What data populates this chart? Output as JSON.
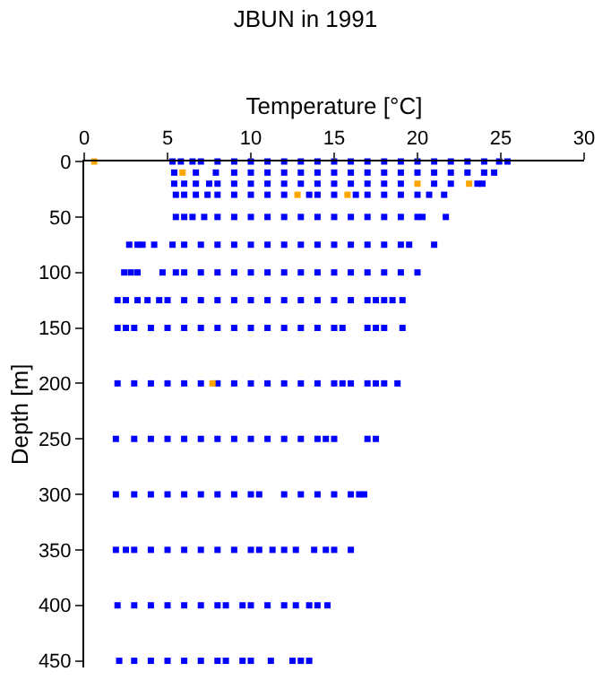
{
  "chart_data": {
    "type": "scatter",
    "title": "JBUN in 1991",
    "xlabel": "Temperature [°C]",
    "ylabel": "Depth [m]",
    "xlim": [
      0,
      30
    ],
    "xticks": [
      0,
      5,
      10,
      15,
      20,
      25,
      30
    ],
    "ylim": [
      456,
      0
    ],
    "yticks": [
      0,
      50,
      100,
      150,
      200,
      250,
      300,
      350,
      400,
      450
    ],
    "marker": "square",
    "series": [
      {
        "color": "#0000ff",
        "x": [
          5.3,
          5.8,
          6.5,
          7,
          8,
          9,
          10,
          11,
          12,
          13,
          14,
          15,
          16,
          17,
          18,
          19,
          20,
          21,
          22,
          23,
          24,
          24.9,
          25.4
        ],
        "values": [
          0,
          0,
          0,
          0,
          0,
          0,
          0,
          0,
          0,
          0,
          0,
          0,
          0,
          0,
          0,
          0,
          0,
          0,
          0,
          0,
          0,
          0,
          0
        ]
      },
      {
        "color": "#0000ff",
        "x": [
          5.4,
          6.7,
          7.9,
          9,
          10,
          11,
          12,
          13,
          14,
          15,
          16,
          17,
          18,
          19,
          20,
          21,
          22,
          23,
          24,
          24.6
        ],
        "values": [
          10,
          10,
          10,
          10,
          10,
          10,
          10,
          10,
          10,
          10,
          10,
          10,
          10,
          10,
          10,
          10,
          10,
          10,
          10,
          10
        ]
      },
      {
        "color": "#0000ff",
        "x": [
          5.4,
          6,
          6.7,
          7.5,
          8,
          9,
          10,
          11,
          12,
          13,
          14,
          15,
          16,
          17,
          18,
          19,
          21,
          22,
          23.6,
          23.9
        ],
        "values": [
          20,
          20,
          20,
          20,
          20,
          20,
          20,
          20,
          20,
          20,
          20,
          20,
          20,
          20,
          20,
          20,
          20,
          20,
          20,
          20
        ]
      },
      {
        "color": "#0000ff",
        "x": [
          5.5,
          6,
          6.7,
          7.4,
          8,
          9,
          10,
          11,
          12,
          13.5,
          14,
          15,
          16.3,
          17,
          18,
          19,
          20,
          20.7,
          21.6
        ],
        "values": [
          30,
          30,
          30,
          30,
          30,
          30,
          30,
          30,
          30,
          30,
          30,
          30,
          30,
          30,
          30,
          30,
          30,
          30,
          30
        ]
      },
      {
        "color": "#0000ff",
        "x": [
          5.5,
          6,
          6.5,
          7.2,
          8,
          9,
          10,
          11,
          12,
          13,
          14,
          15,
          16,
          17,
          18,
          19,
          20,
          20.3,
          21.7
        ],
        "values": [
          50,
          50,
          50,
          50,
          50,
          50,
          50,
          50,
          50,
          50,
          50,
          50,
          50,
          50,
          50,
          50,
          50,
          50,
          50
        ]
      },
      {
        "color": "#0000ff",
        "x": [
          2.7,
          3.2,
          3.5,
          4.2,
          5.3,
          6,
          7,
          8,
          9,
          10,
          11,
          12,
          13,
          14,
          15,
          16,
          17,
          18,
          19,
          19.5,
          21
        ],
        "values": [
          75,
          75,
          75,
          75,
          75,
          75,
          75,
          75,
          75,
          75,
          75,
          75,
          75,
          75,
          75,
          75,
          75,
          75,
          75,
          75,
          75
        ]
      },
      {
        "color": "#0000ff",
        "x": [
          2.4,
          2.8,
          3.2,
          4.7,
          5.5,
          6,
          7,
          8,
          9,
          10,
          11,
          12,
          13,
          14,
          15,
          16,
          17,
          18,
          19,
          20
        ],
        "values": [
          100,
          100,
          100,
          100,
          100,
          100,
          100,
          100,
          100,
          100,
          100,
          100,
          100,
          100,
          100,
          100,
          100,
          100,
          100,
          100
        ]
      },
      {
        "color": "#0000ff",
        "x": [
          2,
          2.5,
          3.2,
          3.8,
          4.5,
          5,
          6,
          7,
          8,
          9,
          10,
          11,
          12,
          13,
          14,
          15,
          16,
          17,
          17.5,
          18,
          18.5,
          19.1
        ],
        "values": [
          125,
          125,
          125,
          125,
          125,
          125,
          125,
          125,
          125,
          125,
          125,
          125,
          125,
          125,
          125,
          125,
          125,
          125,
          125,
          125,
          125,
          125
        ]
      },
      {
        "color": "#0000ff",
        "x": [
          2,
          2.5,
          3,
          4,
          5,
          6,
          7,
          8,
          9,
          10,
          11,
          12,
          13,
          14,
          15,
          15.5,
          17,
          17.5,
          18,
          19.1
        ],
        "values": [
          150,
          150,
          150,
          150,
          150,
          150,
          150,
          150,
          150,
          150,
          150,
          150,
          150,
          150,
          150,
          150,
          150,
          150,
          150,
          150
        ]
      },
      {
        "color": "#0000ff",
        "x": [
          2,
          3,
          4,
          5,
          6,
          7,
          8,
          9,
          10,
          11,
          12,
          13,
          14,
          15,
          15.5,
          16,
          17,
          17.5,
          18,
          18.8
        ],
        "values": [
          200,
          200,
          200,
          200,
          200,
          200,
          200,
          200,
          200,
          200,
          200,
          200,
          200,
          200,
          200,
          200,
          200,
          200,
          200,
          200
        ]
      },
      {
        "color": "#0000ff",
        "x": [
          1.9,
          3,
          4,
          5,
          6,
          7,
          8,
          9,
          10,
          11,
          12,
          13,
          14,
          14.5,
          15,
          17,
          17.5
        ],
        "values": [
          250,
          250,
          250,
          250,
          250,
          250,
          250,
          250,
          250,
          250,
          250,
          250,
          250,
          250,
          250,
          250,
          250
        ]
      },
      {
        "color": "#0000ff",
        "x": [
          1.9,
          3,
          4,
          5,
          6,
          7,
          8,
          9,
          10,
          10.5,
          12,
          13,
          14,
          15,
          16,
          16.5,
          16.8
        ],
        "values": [
          300,
          300,
          300,
          300,
          300,
          300,
          300,
          300,
          300,
          300,
          300,
          300,
          300,
          300,
          300,
          300,
          300
        ]
      },
      {
        "color": "#0000ff",
        "x": [
          1.9,
          2.5,
          3,
          4,
          5,
          6,
          7,
          8,
          9,
          10,
          10.5,
          11.3,
          12,
          12.7,
          13.8,
          14.5,
          15,
          16
        ],
        "values": [
          350,
          350,
          350,
          350,
          350,
          350,
          350,
          350,
          350,
          350,
          350,
          350,
          350,
          350,
          350,
          350,
          350,
          350
        ]
      },
      {
        "color": "#0000ff",
        "x": [
          2,
          3,
          4,
          5,
          6,
          7,
          8,
          8.5,
          9.5,
          10,
          11,
          12,
          12.7,
          13.5,
          14,
          14.6
        ],
        "values": [
          400,
          400,
          400,
          400,
          400,
          400,
          400,
          400,
          400,
          400,
          400,
          400,
          400,
          400,
          400,
          400
        ]
      },
      {
        "color": "#0000ff",
        "x": [
          2.1,
          3,
          4,
          5,
          6,
          7,
          8,
          8.5,
          9.5,
          10,
          11.2,
          12.5,
          13,
          13.5
        ],
        "values": [
          450,
          450,
          450,
          450,
          450,
          450,
          450,
          450,
          450,
          450,
          450,
          450,
          450,
          450
        ]
      },
      {
        "color": "#ffa500",
        "x": [
          0.6,
          5.9,
          20,
          23.1,
          12.8,
          15.8,
          7.7
        ],
        "values": [
          0,
          10,
          20,
          20,
          30,
          30,
          200
        ]
      }
    ]
  }
}
